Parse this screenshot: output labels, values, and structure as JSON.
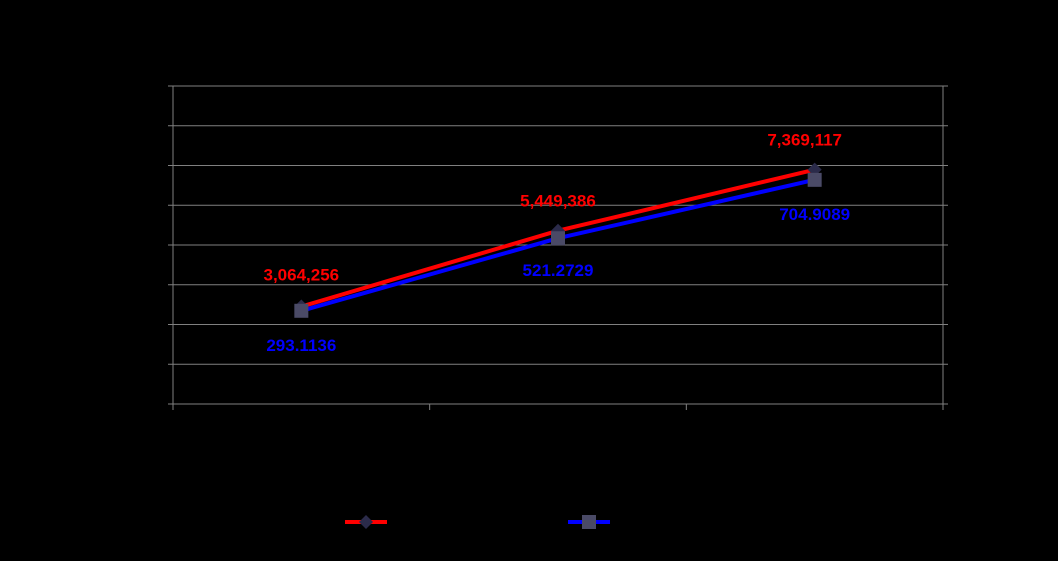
{
  "colors": {
    "background": "#000000",
    "grid": "#808080",
    "series_a": "#ff0000",
    "series_a_marker": "#2b2b4a",
    "series_b": "#0000ff",
    "series_b_marker": "#4a4a66",
    "label_a": "#ff0000",
    "label_b": "#0000ff"
  },
  "chart_data": {
    "type": "line",
    "title": "",
    "xlabel": "",
    "ylabel": "",
    "categories": [
      "",
      "",
      ""
    ],
    "grid": true,
    "legend": "bottom",
    "series": [
      {
        "marker": "diamond",
        "color": "#ff0000",
        "axis": "primary",
        "values": [
          3064256,
          5449386,
          7369117
        ],
        "labels": [
          "3,064,256",
          "5,449,386",
          "7,369,117"
        ],
        "ylim": [
          0,
          10000000
        ]
      },
      {
        "marker": "square",
        "color": "#0000ff",
        "axis": "secondary",
        "values": [
          293.1136,
          521.2729,
          704.9089
        ],
        "labels": [
          "293.1136",
          "521.2729",
          "704.9089"
        ],
        "ylim": [
          0,
          1000
        ]
      }
    ]
  }
}
